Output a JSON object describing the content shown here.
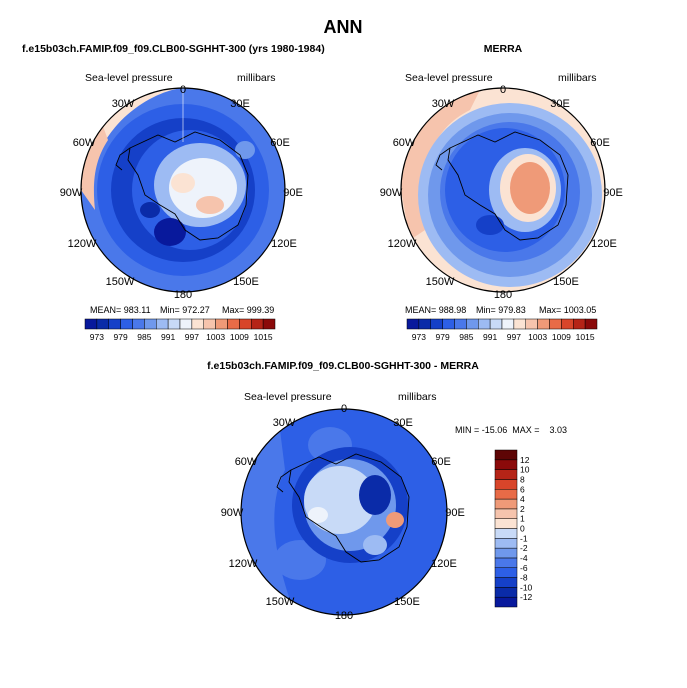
{
  "page": {
    "title": "ANN"
  },
  "colors": {
    "bg": "#ffffff",
    "ocean_deep": "#0a2ba8",
    "ocean_mid": "#2d5fe6",
    "ocean_light": "#6f98ec",
    "pale": "#d9e7fa",
    "warm": "#f6c4ad",
    "warm2": "#ef9a78",
    "coast": "#000000"
  },
  "chart_data": [
    {
      "type": "polar-contour-map",
      "id": "model",
      "title": "f.e15b03ch.FAMIP.f09_f09.CLB00-SGHHT-300 (yrs 1980-1984)",
      "variable": "Sea-level pressure",
      "units": "millibars",
      "longitude_labels": [
        "0",
        "30E",
        "60E",
        "90E",
        "120E",
        "150E",
        "180",
        "150W",
        "120W",
        "90W",
        "60W",
        "30W"
      ],
      "stats_text": [
        "MEAN= 983.11",
        "Min= 972.27",
        "Max= 999.39"
      ],
      "colorbar_levels": [
        973,
        976,
        979,
        982,
        985,
        988,
        991,
        994,
        997,
        1000,
        1003,
        1006,
        1009,
        1012,
        1015
      ],
      "colorbar_tick_labels": [
        "973",
        "979",
        "985",
        "991",
        "997",
        "1003",
        "1009",
        "1015"
      ],
      "colorbar_colors": [
        "#08199c",
        "#0a2ba8",
        "#1540c8",
        "#2d5fe6",
        "#4a78ea",
        "#6f98ec",
        "#9dbbf3",
        "#c8daf7",
        "#eef3fb",
        "#fbe3d3",
        "#f6c4ad",
        "#ef9a78",
        "#e86b47",
        "#d8452a",
        "#b52417",
        "#8b0a0a"
      ]
    },
    {
      "type": "polar-contour-map",
      "id": "obs",
      "title": "MERRA",
      "variable": "Sea-level pressure",
      "units": "millibars",
      "longitude_labels": [
        "0",
        "30E",
        "60E",
        "90E",
        "120E",
        "150E",
        "180",
        "150W",
        "120W",
        "90W",
        "60W",
        "30W"
      ],
      "stats_text": [
        "MEAN= 988.98",
        "Min= 979.83",
        "Max= 1003.05"
      ],
      "colorbar_levels": [
        973,
        976,
        979,
        982,
        985,
        988,
        991,
        994,
        997,
        1000,
        1003,
        1006,
        1009,
        1012,
        1015
      ],
      "colorbar_tick_labels": [
        "973",
        "979",
        "985",
        "991",
        "997",
        "1003",
        "1009",
        "1015"
      ],
      "colorbar_colors": [
        "#08199c",
        "#0a2ba8",
        "#1540c8",
        "#2d5fe6",
        "#4a78ea",
        "#6f98ec",
        "#9dbbf3",
        "#c8daf7",
        "#eef3fb",
        "#fbe3d3",
        "#f6c4ad",
        "#ef9a78",
        "#e86b47",
        "#d8452a",
        "#b52417",
        "#8b0a0a"
      ]
    },
    {
      "type": "polar-contour-map",
      "id": "diff",
      "title": "f.e15b03ch.FAMIP.f09_f09.CLB00-SGHHT-300 - MERRA",
      "variable": "Sea-level pressure",
      "units": "millibars",
      "longitude_labels": [
        "0",
        "30E",
        "60E",
        "90E",
        "120E",
        "150E",
        "180",
        "150W",
        "120W",
        "90W",
        "60W",
        "30W"
      ],
      "stats_text": [
        "MIN = -15.06  MAX =    3.03"
      ],
      "colorbar_levels": [
        -12,
        -10,
        -8,
        -6,
        -4,
        -2,
        -1,
        0,
        1,
        2,
        4,
        6,
        8,
        10,
        12
      ],
      "colorbar_tick_labels": [
        "-12",
        "-10",
        "-8",
        "-6",
        "-4",
        "-2",
        "-1",
        "0",
        "1",
        "2",
        "4",
        "6",
        "8",
        "10",
        "12"
      ],
      "colorbar_colors": [
        "#08199c",
        "#0a2ba8",
        "#1540c8",
        "#2d5fe6",
        "#4a78ea",
        "#6f98ec",
        "#9dbbf3",
        "#c8daf7",
        "#fbe3d3",
        "#f6c4ad",
        "#ef9a78",
        "#e86b47",
        "#d8452a",
        "#b52417",
        "#8b0a0a",
        "#5e0505"
      ]
    }
  ]
}
